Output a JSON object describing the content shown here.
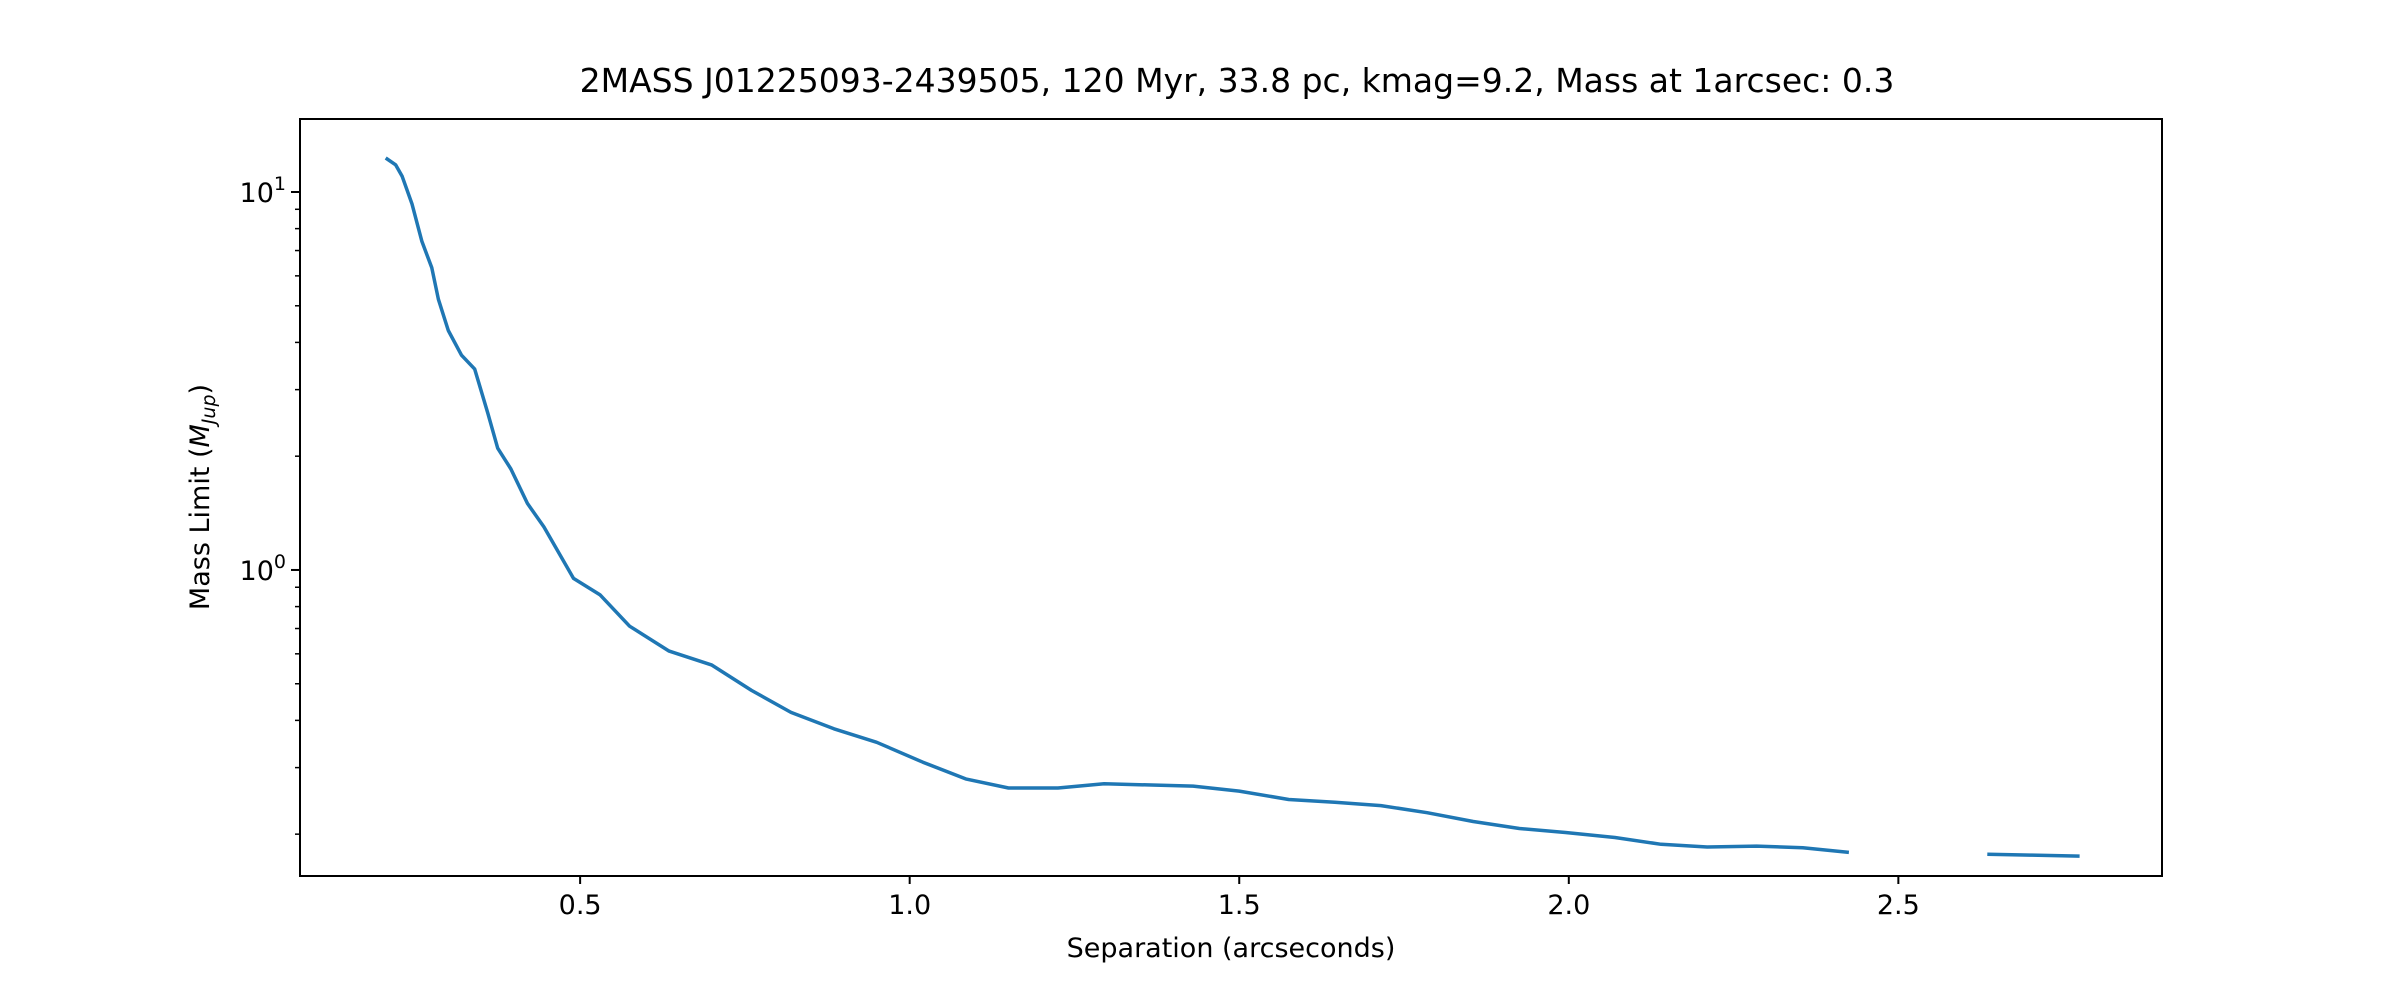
{
  "chart_data": {
    "type": "line",
    "title": "2MASS J01225093-2439505, 120 Myr, 33.8 pc, kmag=9.2, Mass at 1arcsec: 0.3",
    "xlabel": "Separation (arcseconds)",
    "ylabel": {
      "prefix": "Mass Limit (",
      "symbol": "M",
      "subscript": "Jup",
      "suffix": ")"
    },
    "xlim": [
      0.075,
      2.9
    ],
    "ylim": [
      0.155,
      15.6
    ],
    "yscale": "log",
    "grid": false,
    "x_ticks": [
      {
        "value": 0.5,
        "label": "0.5"
      },
      {
        "value": 1.0,
        "label": "1.0"
      },
      {
        "value": 1.5,
        "label": "1.5"
      },
      {
        "value": 2.0,
        "label": "2.0"
      },
      {
        "value": 2.5,
        "label": "2.5"
      }
    ],
    "y_major_ticks": [
      {
        "value": 1,
        "base": "10",
        "exp": "0"
      },
      {
        "value": 10,
        "base": "10",
        "exp": "1"
      }
    ],
    "y_minor_ticks": [
      0.2,
      0.3,
      0.4,
      0.5,
      0.6,
      0.7,
      0.8,
      0.9,
      2,
      3,
      4,
      5,
      6,
      7,
      8,
      9
    ],
    "series": [
      {
        "color": "#1f77b4",
        "segments": [
          {
            "x": [
              0.205,
              0.22,
              0.23,
              0.245,
              0.26,
              0.275,
              0.285,
              0.3,
              0.32,
              0.34,
              0.36,
              0.375,
              0.395,
              0.42,
              0.445,
              0.49,
              0.53,
              0.575,
              0.635,
              0.7,
              0.76,
              0.82,
              0.885,
              0.95,
              1.02,
              1.085,
              1.15,
              1.225,
              1.295,
              1.36,
              1.43,
              1.5,
              1.575,
              1.645,
              1.715,
              1.785,
              1.855,
              1.925,
              1.995,
              2.07,
              2.14,
              2.21,
              2.285,
              2.355,
              2.425
            ],
            "y": [
              12.3,
              11.8,
              11.0,
              9.3,
              7.4,
              6.3,
              5.2,
              4.3,
              3.7,
              3.4,
              2.6,
              2.1,
              1.85,
              1.5,
              1.3,
              0.95,
              0.86,
              0.71,
              0.61,
              0.56,
              0.48,
              0.42,
              0.38,
              0.35,
              0.31,
              0.28,
              0.265,
              0.265,
              0.272,
              0.27,
              0.268,
              0.26,
              0.247,
              0.243,
              0.238,
              0.228,
              0.216,
              0.207,
              0.202,
              0.196,
              0.188,
              0.185,
              0.186,
              0.184,
              0.179
            ]
          },
          {
            "x": [
              2.635,
              2.7,
              2.775
            ],
            "y": [
              0.177,
              0.176,
              0.175
            ]
          }
        ]
      }
    ]
  }
}
